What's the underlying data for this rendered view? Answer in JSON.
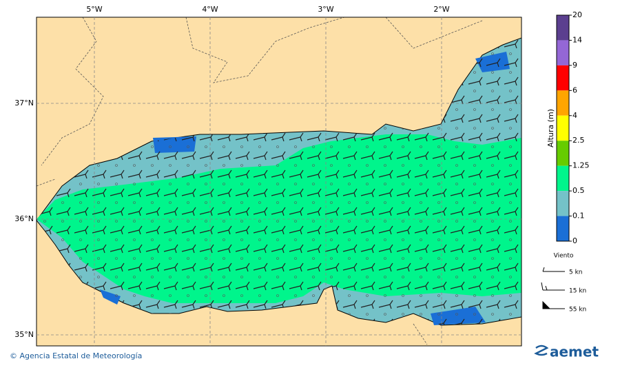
{
  "map": {
    "lon_labels": [
      "5°W",
      "4°W",
      "3°W",
      "2°W"
    ],
    "lat_labels": [
      "37°N",
      "36°N",
      "35°N"
    ]
  },
  "legend": {
    "title": "Altura (m)",
    "levels": [
      "20",
      "14",
      "9",
      "6",
      "4",
      "2.5",
      "1.25",
      "0.5",
      "0.1",
      "0"
    ],
    "colors": [
      "#5b3f8f",
      "#9467d6",
      "#ff0000",
      "#ffa500",
      "#ffff00",
      "#66cc00",
      "#00f58c",
      "#74c2c8",
      "#1a6fd6"
    ],
    "wind_title": "Viento",
    "wind_labels": [
      "5 kn",
      "15 kn",
      "55 kn"
    ]
  },
  "footer": {
    "credit": "© Agencia Estatal de Meteorología",
    "logo": "aemet"
  }
}
